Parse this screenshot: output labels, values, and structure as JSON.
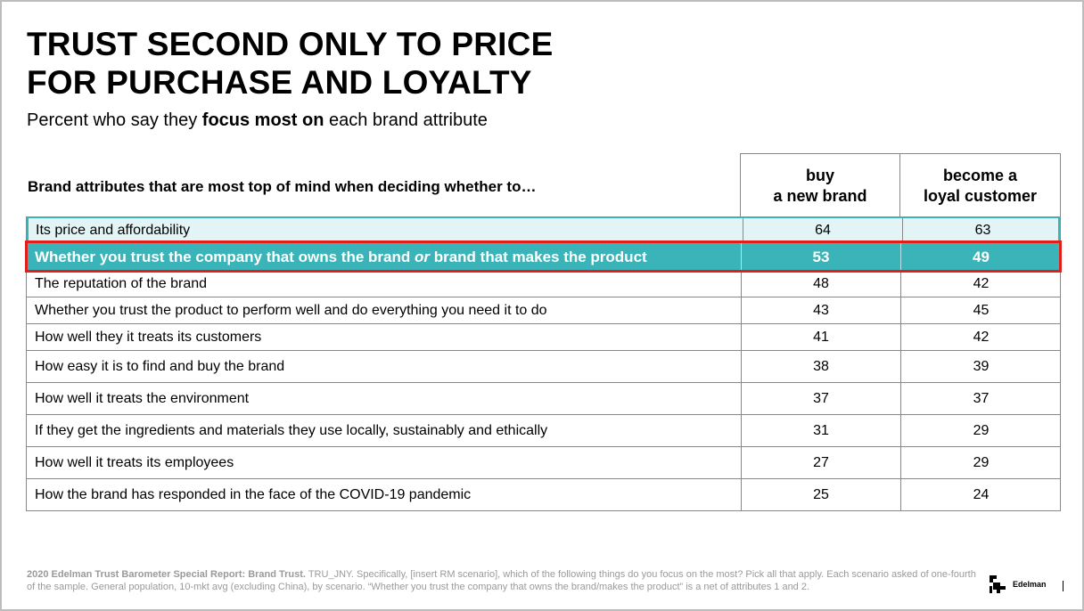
{
  "title": {
    "line1": "TRUST SECOND ONLY TO PRICE",
    "line2": "FOR PURCHASE AND LOYALTY"
  },
  "subtitle": {
    "pre": "Percent who say they ",
    "bold": "focus most on",
    "post": " each brand attribute"
  },
  "table": {
    "row_header": "Brand attributes that are most top of mind when deciding whether to…",
    "col1": [
      "buy",
      "a new brand"
    ],
    "col2": [
      "become a",
      "loyal customer"
    ],
    "rows": [
      {
        "label": "Its price and affordability",
        "buy": "64",
        "loyal": "63"
      },
      {
        "label_pre": "Whether you trust the company that owns the brand ",
        "label_em": "or",
        "label_post": " brand that makes the product",
        "buy": "53",
        "loyal": "49"
      },
      {
        "label": "The reputation of the brand",
        "buy": "48",
        "loyal": "42"
      },
      {
        "label": "Whether you trust the product to perform well and do everything you need it to do",
        "buy": "43",
        "loyal": "45"
      },
      {
        "label": "How well they it treats its customers",
        "buy": "41",
        "loyal": "42"
      },
      {
        "label": "How easy it is to find and buy the brand",
        "buy": "38",
        "loyal": "39"
      },
      {
        "label": "How well it treats the environment",
        "buy": "37",
        "loyal": "37"
      },
      {
        "label": "If they get the ingredients and materials they use locally, sustainably and ethically",
        "buy": "31",
        "loyal": "29"
      },
      {
        "label": "How well it treats its employees",
        "buy": "27",
        "loyal": "29"
      },
      {
        "label": "How the brand has responded in the face of the COVID-19 pandemic",
        "buy": "25",
        "loyal": "24"
      }
    ]
  },
  "footer": {
    "bold": "2020 Edelman Trust Barometer Special Report: Brand Trust.",
    "text": " TRU_JNY. Specifically, [insert RM scenario], which of the following things do you focus on the most? Pick all that apply. Each scenario asked of one-fourth of the sample. General population, 10-mkt avg (excluding China), by scenario. “Whether you trust the company that owns the brand/makes the product” is a net of attributes 1 and 2."
  },
  "logo": {
    "text": "Edelman"
  },
  "colors": {
    "highlight": "#3ab4b9",
    "highlight_light": "#e2f4f6",
    "callout": "#e0211b"
  }
}
